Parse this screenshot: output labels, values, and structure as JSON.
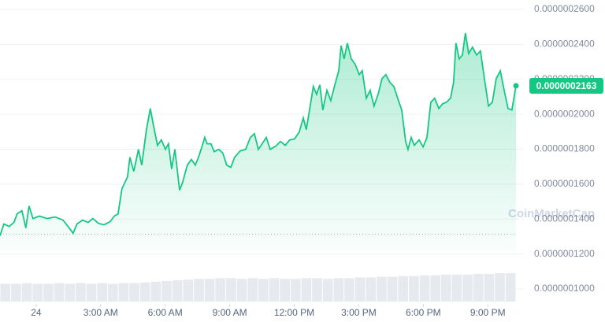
{
  "chart_data": {
    "type": "line",
    "series": [
      {
        "color": "#16c784",
        "x": [
          -1.68,
          -1.5,
          -1.25,
          -1.03,
          -0.88,
          -0.66,
          -0.48,
          -0.33,
          -0.15,
          0.15,
          0.51,
          0.88,
          1.25,
          1.54,
          1.72,
          1.9,
          2.16,
          2.42,
          2.64,
          2.89,
          3.15,
          3.44,
          3.63,
          3.81,
          3.99,
          4.25,
          4.36,
          4.54,
          4.76,
          4.91,
          5.13,
          5.31,
          5.46,
          5.64,
          5.82,
          6.01,
          6.15,
          6.3,
          6.45,
          6.67,
          6.81,
          7.03,
          7.22,
          7.4,
          7.55,
          7.73,
          7.84,
          7.95,
          8.13,
          8.28,
          8.5,
          8.68,
          8.86,
          9.05,
          9.23,
          9.49,
          9.74,
          9.96,
          10.15,
          10.33,
          10.51,
          10.7,
          10.88,
          11.14,
          11.36,
          11.58,
          11.79,
          12.01,
          12.23,
          12.42,
          12.56,
          12.71,
          12.89,
          13.04,
          13.19,
          13.33,
          13.52,
          13.7,
          13.92,
          14.07,
          14.18,
          14.32,
          14.47,
          14.65,
          14.84,
          15.02,
          15.16,
          15.35,
          15.53,
          15.71,
          15.9,
          16.08,
          16.26,
          16.45,
          16.63,
          16.81,
          17.0,
          17.18,
          17.29,
          17.44,
          17.58,
          17.8,
          17.99,
          18.17,
          18.35,
          18.53,
          18.72,
          18.9,
          19.08,
          19.27,
          19.41,
          19.52,
          19.67,
          19.82,
          19.96,
          20.11,
          20.29,
          20.48,
          20.66,
          20.84,
          21.03,
          21.21,
          21.39,
          21.58,
          21.76,
          21.94,
          22.12,
          22.31
        ],
        "values": [
          1.304e-07,
          1.372e-07,
          1.358e-07,
          1.381e-07,
          1.43e-07,
          1.448e-07,
          1.349e-07,
          1.475e-07,
          1.403e-07,
          1.417e-07,
          1.403e-07,
          1.412e-07,
          1.394e-07,
          1.349e-07,
          1.318e-07,
          1.372e-07,
          1.394e-07,
          1.381e-07,
          1.403e-07,
          1.376e-07,
          1.367e-07,
          1.385e-07,
          1.417e-07,
          1.43e-07,
          1.574e-07,
          1.642e-07,
          1.754e-07,
          1.673e-07,
          1.799e-07,
          1.709e-07,
          1.912e-07,
          2.033e-07,
          1.934e-07,
          1.822e-07,
          1.853e-07,
          1.799e-07,
          1.831e-07,
          1.687e-07,
          1.799e-07,
          1.565e-07,
          1.61e-07,
          1.709e-07,
          1.741e-07,
          1.709e-07,
          1.754e-07,
          1.822e-07,
          1.867e-07,
          1.831e-07,
          1.831e-07,
          1.786e-07,
          1.799e-07,
          1.777e-07,
          1.709e-07,
          1.696e-07,
          1.754e-07,
          1.79e-07,
          1.799e-07,
          1.867e-07,
          1.889e-07,
          1.799e-07,
          1.831e-07,
          1.867e-07,
          1.799e-07,
          1.817e-07,
          1.844e-07,
          1.822e-07,
          1.853e-07,
          1.858e-07,
          1.898e-07,
          1.979e-07,
          1.912e-07,
          2.024e-07,
          2.159e-07,
          2.114e-07,
          2.168e-07,
          2.024e-07,
          2.137e-07,
          2.078e-07,
          2.182e-07,
          2.249e-07,
          2.393e-07,
          2.317e-07,
          2.407e-07,
          2.317e-07,
          2.285e-07,
          2.227e-07,
          2.249e-07,
          2.092e-07,
          2.137e-07,
          2.047e-07,
          2.114e-07,
          2.204e-07,
          2.227e-07,
          2.182e-07,
          2.159e-07,
          2.092e-07,
          2.024e-07,
          1.844e-07,
          1.799e-07,
          1.867e-07,
          1.822e-07,
          1.853e-07,
          1.813e-07,
          1.867e-07,
          2.069e-07,
          2.092e-07,
          2.033e-07,
          2.06e-07,
          2.069e-07,
          2.092e-07,
          2.182e-07,
          2.407e-07,
          2.317e-07,
          2.339e-07,
          2.465e-07,
          2.348e-07,
          2.384e-07,
          2.339e-07,
          2.362e-07,
          2.204e-07,
          2.047e-07,
          2.069e-07,
          2.204e-07,
          2.249e-07,
          2.137e-07,
          2.033e-07,
          2.024e-07,
          2.163e-07
        ]
      }
    ],
    "xlim": [
      -1.68,
      22.31
    ],
    "xticks": [
      {
        "value": 0,
        "label": "24"
      },
      {
        "value": 3,
        "label": "3:00 AM"
      },
      {
        "value": 6,
        "label": "6:00 AM"
      },
      {
        "value": 9,
        "label": "9:00 AM"
      },
      {
        "value": 12,
        "label": "12:00 PM"
      },
      {
        "value": 15,
        "label": "3:00 PM"
      },
      {
        "value": 18,
        "label": "6:00 PM"
      },
      {
        "value": 21,
        "label": "9:00 PM"
      }
    ],
    "ylim": [
      1e-07,
      2.6e-07
    ],
    "yticks": [
      {
        "value": 2.6e-07,
        "label": "0.0000002600"
      },
      {
        "value": 2.4e-07,
        "label": "0.0000002400"
      },
      {
        "value": 2.2e-07,
        "label": "0.0000002200"
      },
      {
        "value": 2e-07,
        "label": "0.0000002000"
      },
      {
        "value": 1.8e-07,
        "label": "0.0000001800"
      },
      {
        "value": 1.6e-07,
        "label": "0.0000001600"
      },
      {
        "value": 1.4e-07,
        "label": "0.0000001400"
      },
      {
        "value": 1.2e-07,
        "label": "0.0000001200"
      },
      {
        "value": 1e-07,
        "label": "0.0000001000"
      }
    ],
    "grid": true,
    "open": 1.314e-07,
    "current_price": {
      "value": 2.163e-07,
      "label": "0.0000002163"
    },
    "volume": [
      25,
      25,
      26,
      25,
      25,
      26,
      25,
      26,
      25,
      26,
      25,
      26,
      26,
      27,
      28,
      29,
      30,
      31,
      32,
      32,
      33,
      33,
      32,
      33,
      32,
      33,
      32,
      32,
      33,
      33,
      32,
      33,
      33,
      34,
      34,
      35,
      35,
      36,
      36,
      37,
      37,
      38,
      38,
      38,
      39,
      39,
      40,
      40
    ],
    "watermark": "CoinMarketCap"
  }
}
